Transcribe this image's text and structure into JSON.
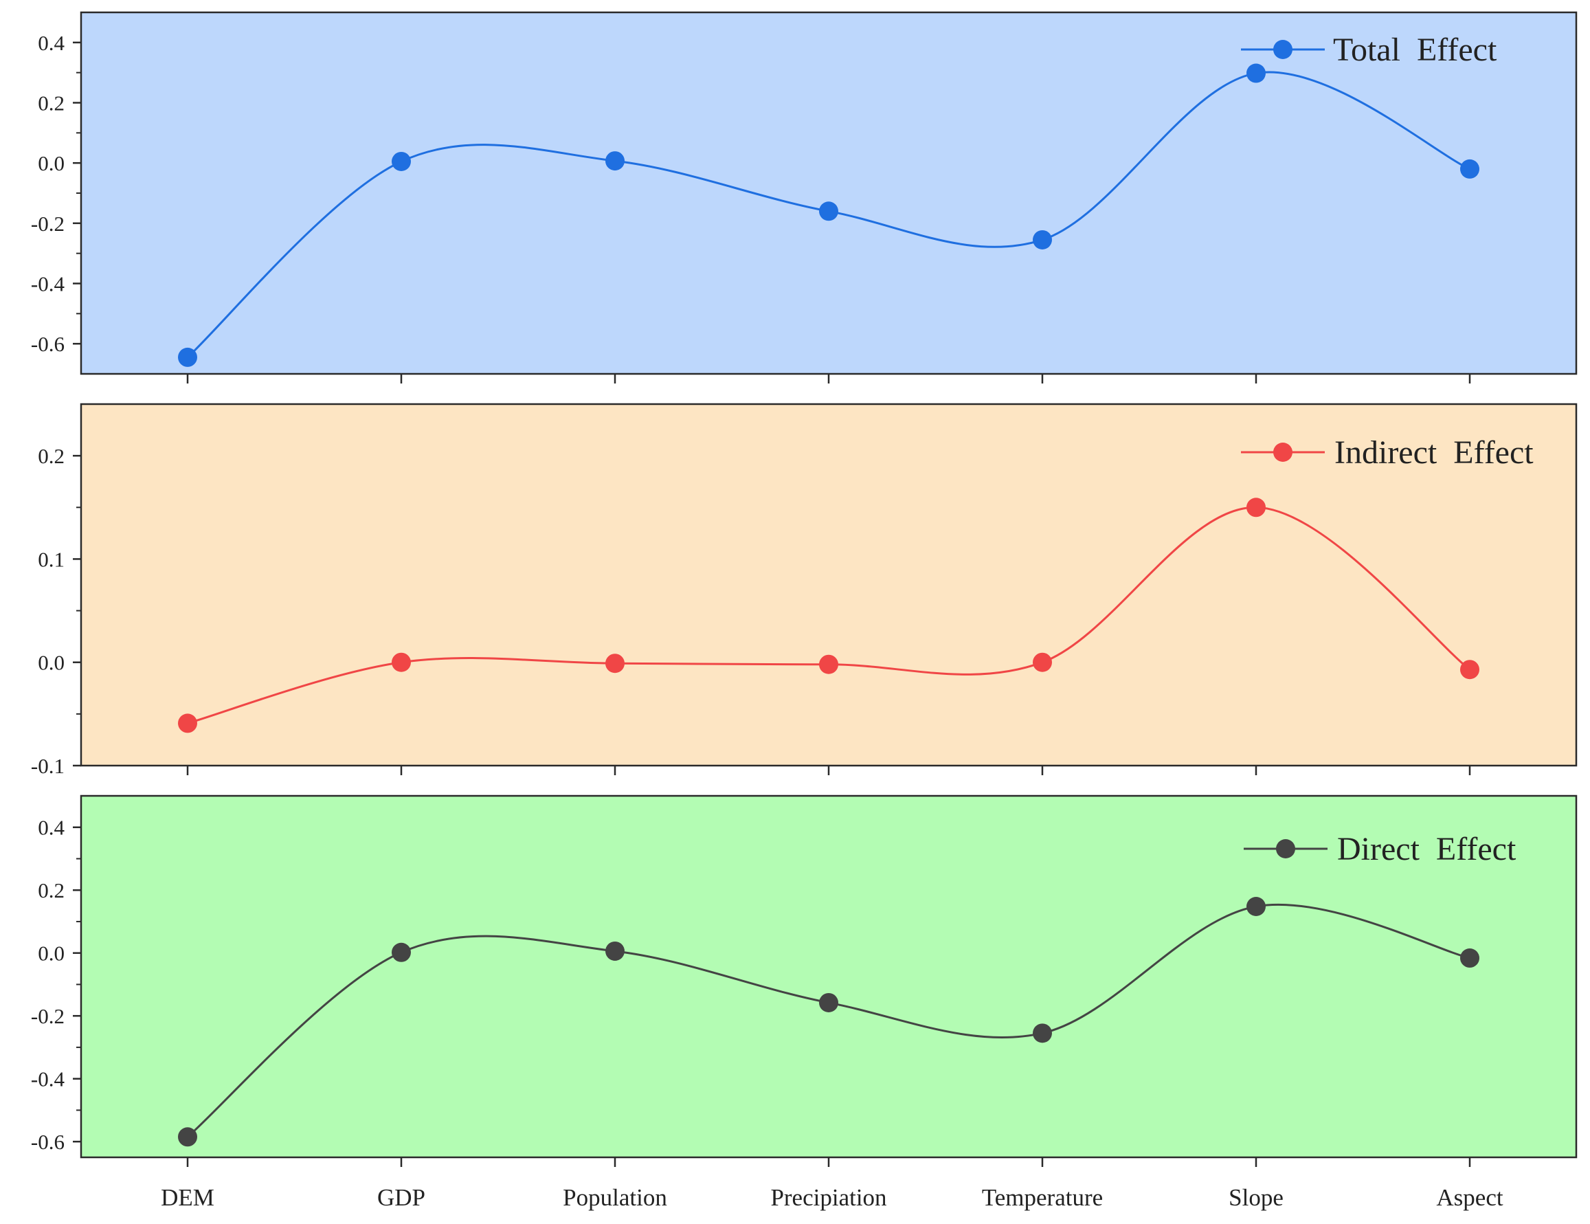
{
  "chart_data": [
    {
      "type": "line",
      "categories": [
        "DEM",
        "GDP",
        "Population",
        "Precipiation",
        "Temperature",
        "Slope",
        "Aspect"
      ],
      "series": [
        {
          "name": "Total  Effect",
          "values": [
            -0.645,
            0.005,
            0.007,
            -0.16,
            -0.255,
            0.298,
            -0.02
          ]
        }
      ],
      "title": "",
      "xlabel": "",
      "ylabel": "",
      "ylim": [
        -0.7,
        0.5
      ],
      "yticks": [
        "0.4",
        "0.2",
        "0.0",
        "-0.2",
        "-0.4",
        "-0.6"
      ],
      "ytick_values": [
        0.4,
        0.2,
        0.0,
        -0.2,
        -0.4,
        -0.6
      ],
      "background": "#bdd7fc",
      "line_color": "#1f6fe0",
      "smooth": true,
      "grid": false,
      "legend": "top-right"
    },
    {
      "type": "line",
      "categories": [
        "DEM",
        "GDP",
        "Population",
        "Precipiation",
        "Temperature",
        "Slope",
        "Aspect"
      ],
      "series": [
        {
          "name": "Indirect  Effect",
          "values": [
            -0.059,
            0.0,
            -0.001,
            -0.002,
            0.0,
            0.15,
            -0.007
          ]
        }
      ],
      "title": "",
      "xlabel": "",
      "ylabel": "",
      "ylim": [
        -0.1,
        0.25
      ],
      "yticks": [
        "0.2",
        "0.1",
        "0.0",
        "-0.1"
      ],
      "ytick_values": [
        0.2,
        0.1,
        0.0,
        -0.1
      ],
      "background": "#fde5c3",
      "line_color": "#f04646",
      "smooth": true,
      "grid": false,
      "legend": "top-right"
    },
    {
      "type": "line",
      "categories": [
        "DEM",
        "GDP",
        "Population",
        "Precipiation",
        "Temperature",
        "Slope",
        "Aspect"
      ],
      "series": [
        {
          "name": "Direct  Effect",
          "values": [
            -0.585,
            0.002,
            0.006,
            -0.158,
            -0.255,
            0.148,
            -0.016
          ]
        }
      ],
      "title": "",
      "xlabel": "",
      "ylabel": "",
      "ylim": [
        -0.65,
        0.5
      ],
      "yticks": [
        "0.4",
        "0.2",
        "0.0",
        "-0.2",
        "-0.4",
        "-0.6"
      ],
      "ytick_values": [
        0.4,
        0.2,
        0.0,
        -0.2,
        -0.4,
        -0.6
      ],
      "background": "#b3fcb3",
      "line_color": "#444444",
      "smooth": true,
      "grid": false,
      "legend": "top-right"
    }
  ]
}
